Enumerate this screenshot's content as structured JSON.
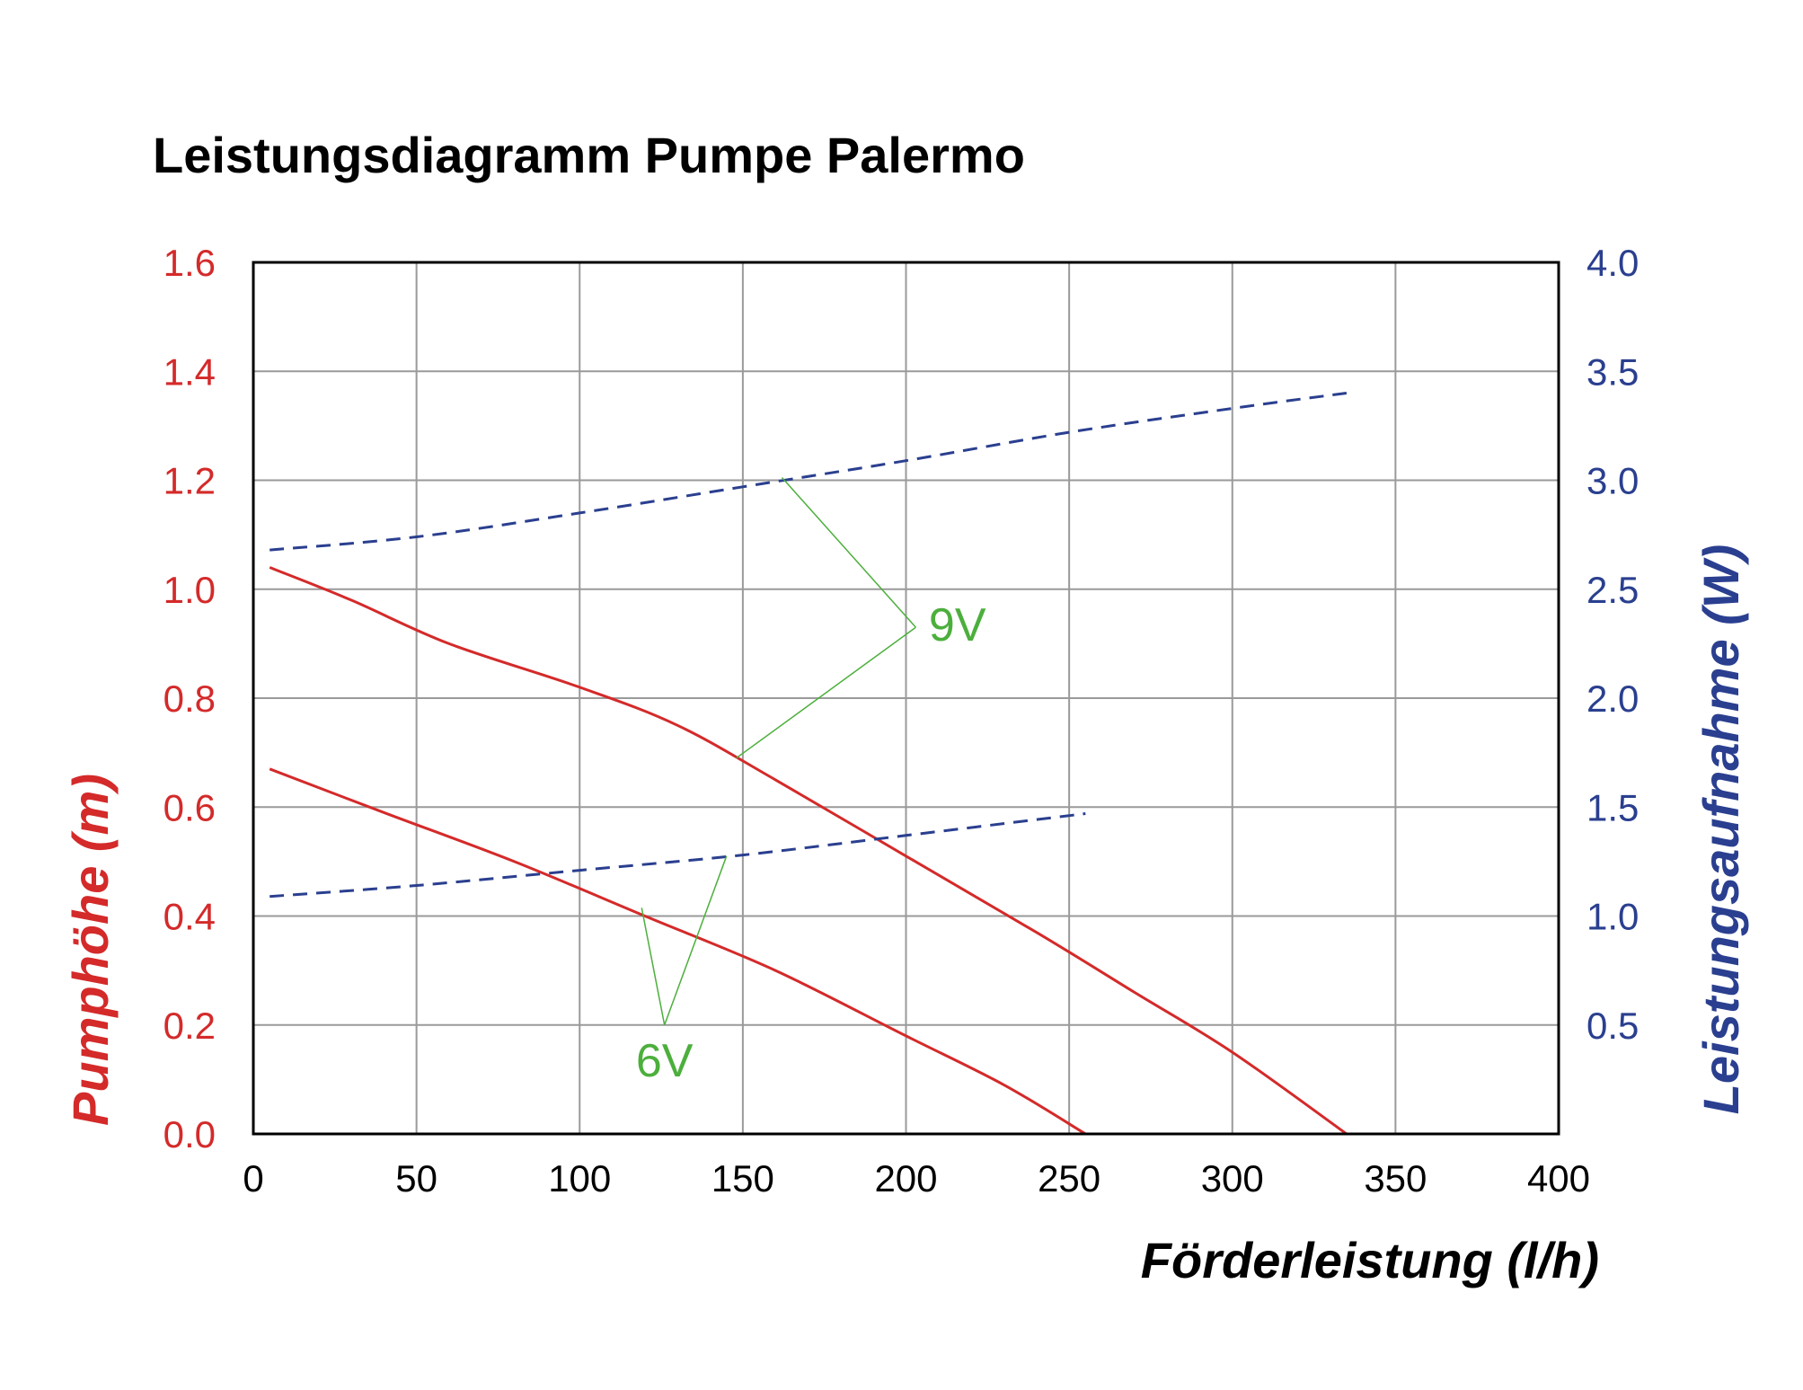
{
  "chart_data": {
    "type": "line",
    "title": "Leistungsdiagramm Pumpe Palermo",
    "xlabel": "Förderleistung (l/h)",
    "ylabel": "Pumphöhe (m)",
    "y2label": "Leistungsaufnahme (W)",
    "xlim": [
      0,
      400
    ],
    "ylim": [
      0,
      1.6
    ],
    "y2lim": [
      0,
      4.0
    ],
    "x_ticks": [
      "0",
      "50",
      "100",
      "150",
      "200",
      "250",
      "300",
      "350",
      "400"
    ],
    "y_ticks": [
      "0.0",
      "0.2",
      "0.4",
      "0.6",
      "0.8",
      "1.0",
      "1.2",
      "1.4",
      "1.6"
    ],
    "y2_ticks": [
      "0.5",
      "1.0",
      "1.5",
      "2.0",
      "2.5",
      "3.0",
      "3.5",
      "4.0"
    ],
    "grid": true,
    "colors": {
      "head": "#d42a2a",
      "power": "#2a3f8f",
      "annotation": "#4caf3c",
      "left_axis": "#d42a2a",
      "right_axis": "#2a3f8f",
      "grid": "#9a9a9a"
    },
    "series": [
      {
        "axis": "left",
        "style": "solid",
        "x": [
          5,
          30,
          60,
          100,
          130,
          160,
          200,
          240,
          270,
          300,
          335
        ],
        "y": [
          1.04,
          0.98,
          0.9,
          0.82,
          0.75,
          0.65,
          0.51,
          0.37,
          0.26,
          0.15,
          0.0
        ]
      },
      {
        "axis": "left",
        "style": "solid",
        "x": [
          5,
          40,
          80,
          120,
          160,
          200,
          230,
          255
        ],
        "y": [
          0.67,
          0.59,
          0.5,
          0.4,
          0.3,
          0.18,
          0.09,
          0.0
        ]
      },
      {
        "axis": "right",
        "style": "dashed",
        "x": [
          5,
          50,
          100,
          150,
          200,
          250,
          300,
          335
        ],
        "y": [
          2.68,
          2.74,
          2.85,
          2.97,
          3.09,
          3.22,
          3.33,
          3.4
        ]
      },
      {
        "axis": "right",
        "style": "dashed",
        "x": [
          5,
          50,
          100,
          150,
          200,
          255
        ],
        "y": [
          1.09,
          1.14,
          1.21,
          1.28,
          1.37,
          1.47
        ]
      }
    ],
    "annotations": [
      {
        "text": "9V",
        "label_pos": [
          207,
          0.935
        ],
        "vertex": [
          203,
          0.93
        ],
        "to": [
          [
            162,
            1.205
          ],
          [
            148,
            0.69
          ]
        ]
      },
      {
        "text": "6V",
        "label_pos": [
          126,
          0.135
        ],
        "vertex": [
          126,
          0.2
        ],
        "to": [
          [
            119,
            0.415
          ],
          [
            145,
            0.51
          ]
        ]
      }
    ]
  }
}
